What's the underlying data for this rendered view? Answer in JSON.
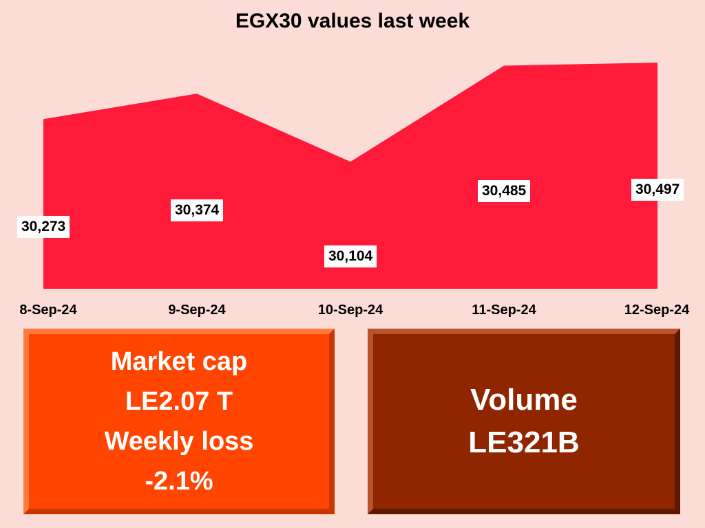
{
  "chart_data": {
    "type": "area",
    "title": "EGX30 values last week",
    "categories": [
      "8-Sep-24",
      "9-Sep-24",
      "10-Sep-24",
      "11-Sep-24",
      "12-Sep-24"
    ],
    "values": [
      30273,
      30374,
      30104,
      30485,
      30497
    ],
    "value_labels": [
      "30,273",
      "30,374",
      "30,104",
      "30,485",
      "30,497"
    ],
    "ylim": [
      29600,
      30500
    ],
    "xlabel": "",
    "ylabel": "",
    "grid": false,
    "fill_color": "#ff1a3a"
  },
  "cards": {
    "market": {
      "line1": "Market cap",
      "line2": "LE2.07 T",
      "line3": "Weekly loss",
      "line4": "-2.1%",
      "color": "#ff4500"
    },
    "volume": {
      "line1": "Volume",
      "line2": "LE321B",
      "color": "#902600"
    }
  },
  "colors": {
    "background": "#fcdcd7"
  }
}
